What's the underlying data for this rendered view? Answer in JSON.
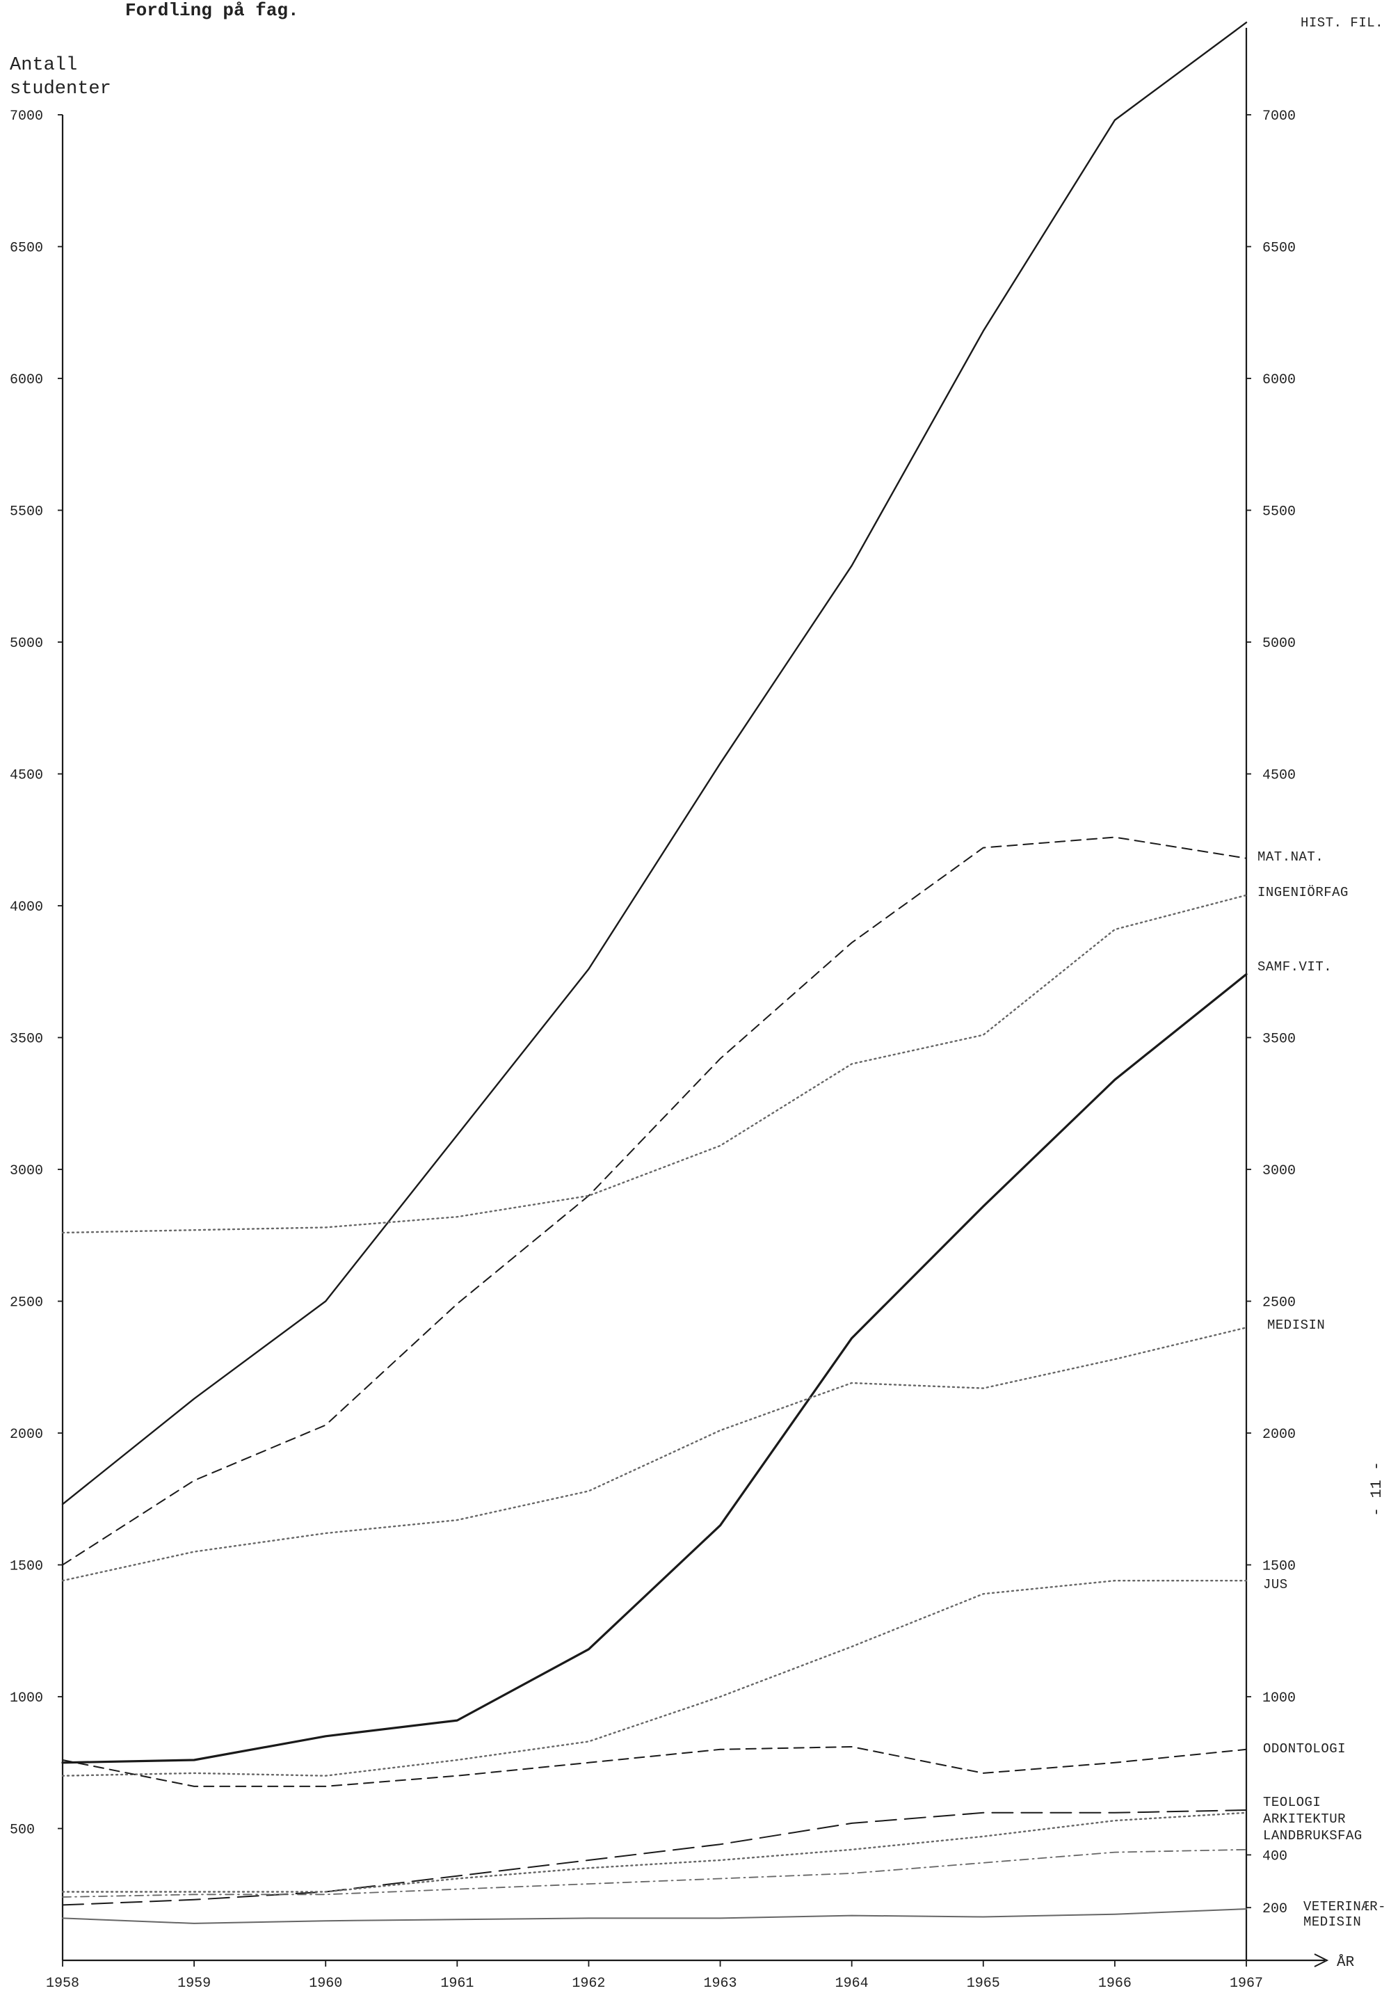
{
  "chart_data": {
    "type": "line",
    "title": "Fordling på fag.",
    "ylabel": [
      "Antall",
      "studenter"
    ],
    "xlabel": "ÅR",
    "x": [
      1958,
      1959,
      1960,
      1961,
      1962,
      1963,
      1964,
      1965,
      1966,
      1967
    ],
    "ylim": [
      0,
      7000
    ],
    "y_ticks_left": [
      500,
      1000,
      1500,
      2000,
      2500,
      3000,
      3500,
      4000,
      4500,
      5000,
      5500,
      6000,
      6500,
      7000
    ],
    "y_ticks_right": [
      200,
      400,
      1000,
      1500,
      2000,
      2500,
      3000,
      3500,
      4500,
      5000,
      5500,
      6000,
      6500,
      7000
    ],
    "grid": false,
    "series": [
      {
        "name": "HIST. FIL.",
        "style": "solid",
        "values": [
          1730,
          2130,
          2500,
          3130,
          3760,
          4540,
          5290,
          6180,
          6980,
          7350
        ]
      },
      {
        "name": "MAT.NAT.",
        "style": "dashed",
        "values": [
          1500,
          1820,
          2030,
          2490,
          2900,
          3420,
          3860,
          4220,
          4260,
          4180
        ]
      },
      {
        "name": "INGENIÖRFAG",
        "style": "dotted",
        "values": [
          2760,
          2770,
          2780,
          2820,
          2900,
          3090,
          3400,
          3510,
          3910,
          4040
        ]
      },
      {
        "name": "SAMF.VIT.",
        "style": "solid-heavy",
        "values": [
          750,
          760,
          850,
          910,
          1180,
          1650,
          2360,
          2860,
          3340,
          3740
        ]
      },
      {
        "name": "MEDISIN",
        "style": "dotted",
        "values": [
          1440,
          1550,
          1620,
          1670,
          1780,
          2010,
          2190,
          2170,
          2280,
          2400
        ]
      },
      {
        "name": "JUS",
        "style": "dotted",
        "values": [
          700,
          710,
          700,
          760,
          830,
          1000,
          1190,
          1390,
          1440,
          1440
        ]
      },
      {
        "name": "ODONTOLOGI",
        "style": "dashed",
        "values": [
          760,
          660,
          660,
          700,
          750,
          800,
          810,
          710,
          750,
          800
        ]
      },
      {
        "name": "TEOLOGI",
        "style": "long-dash",
        "values": [
          210,
          230,
          260,
          320,
          380,
          440,
          520,
          560,
          560,
          570
        ]
      },
      {
        "name": "ARKITEKTUR",
        "style": "dotted",
        "values": [
          260,
          260,
          260,
          310,
          350,
          380,
          420,
          470,
          530,
          560
        ]
      },
      {
        "name": "LANDBRUKSFAG",
        "style": "dash-dot",
        "values": [
          240,
          250,
          250,
          270,
          290,
          310,
          330,
          370,
          410,
          420
        ]
      },
      {
        "name": "VETERINÆR-MEDISIN",
        "style": "solid-thin",
        "values": [
          160,
          140,
          150,
          155,
          160,
          160,
          170,
          165,
          175,
          195
        ]
      }
    ],
    "series_labels": [
      {
        "lines": [
          "HIST. FIL."
        ]
      },
      {
        "lines": [
          "MAT.NAT."
        ]
      },
      {
        "lines": [
          "INGENIÖRFAG"
        ]
      },
      {
        "lines": [
          "SAMF.VIT."
        ]
      },
      {
        "lines": [
          "MEDISIN"
        ]
      },
      {
        "lines": [
          "JUS"
        ]
      },
      {
        "lines": [
          "ODONTOLOGI"
        ]
      },
      {
        "lines": [
          "TEOLOGI"
        ]
      },
      {
        "lines": [
          "ARKITEKTUR"
        ]
      },
      {
        "lines": [
          "LANDBRUKSFAG"
        ]
      },
      {
        "lines": [
          "VETERINÆR-",
          "MEDISIN"
        ]
      }
    ],
    "margin_note": "- 11 -"
  },
  "colors": {
    "ink": "#1a1a1a",
    "light_ink": "#666666",
    "paper": "#ffffff"
  }
}
